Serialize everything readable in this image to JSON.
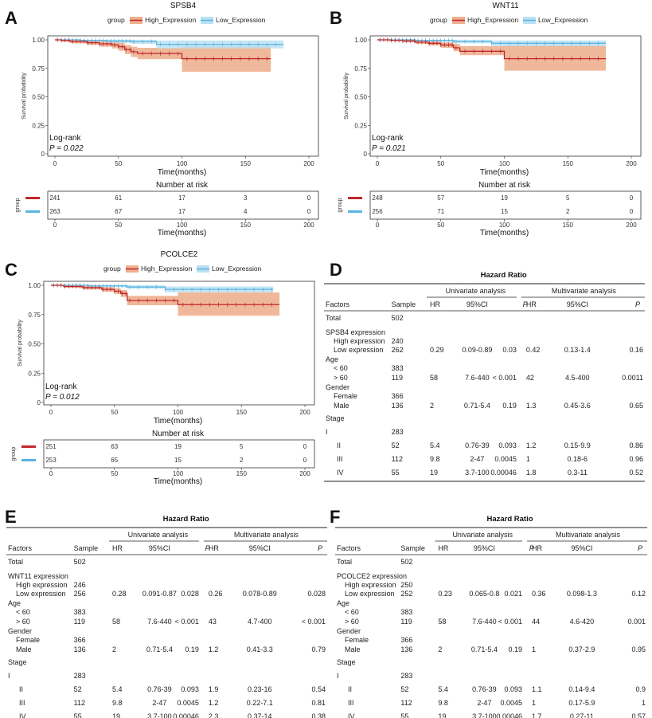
{
  "panel_labels": [
    "A",
    "B",
    "C",
    "D",
    "E",
    "F"
  ],
  "legend": {
    "title": "group",
    "high": "High_Expression",
    "low": "Low_Expression"
  },
  "colors": {
    "high": "#c0282d",
    "high_band": "#eeb08f",
    "low": "#5ab4e0",
    "low_band": "#b9e0f2"
  },
  "km_common": {
    "ylabel": "Survival probability",
    "xlabel": "Time(months)",
    "yticks": [
      "0",
      "0.25",
      "0.50",
      "0.75",
      "1.00"
    ],
    "xticks": [
      "0",
      "50",
      "100",
      "150",
      "200"
    ],
    "logrank_label": "Log-rank",
    "risk_title": "Number at risk",
    "risk_ylabel": "group"
  },
  "chart_data": [
    {
      "type": "line",
      "title": "SPSB4",
      "xlim": [
        0,
        200
      ],
      "ylim": [
        0,
        1
      ],
      "logrank_p": "P = 0.022",
      "series": [
        {
          "name": "High_Expression",
          "x": [
            0,
            5,
            12,
            25,
            35,
            45,
            50,
            55,
            60,
            65,
            100,
            170
          ],
          "y": [
            1.0,
            0.995,
            0.985,
            0.975,
            0.965,
            0.955,
            0.94,
            0.915,
            0.895,
            0.88,
            0.835,
            0.835
          ],
          "band_low": [
            1.0,
            0.985,
            0.97,
            0.955,
            0.94,
            0.925,
            0.905,
            0.875,
            0.85,
            0.83,
            0.72,
            0.72
          ],
          "band_high": [
            1.0,
            1.0,
            1.0,
            0.995,
            0.99,
            0.985,
            0.975,
            0.955,
            0.94,
            0.93,
            0.94,
            0.94
          ]
        },
        {
          "name": "Low_Expression",
          "x": [
            0,
            20,
            40,
            60,
            80,
            180
          ],
          "y": [
            1.0,
            0.995,
            0.99,
            0.985,
            0.96,
            0.96
          ],
          "band_low": [
            1.0,
            0.985,
            0.975,
            0.965,
            0.925,
            0.925
          ],
          "band_high": [
            1.0,
            1.0,
            1.0,
            1.0,
            0.995,
            0.995
          ]
        }
      ],
      "risk_table": {
        "times": [
          0,
          50,
          100,
          150,
          200
        ],
        "high": [
          "241",
          "61",
          "17",
          "3",
          "0"
        ],
        "low": [
          "263",
          "67",
          "17",
          "4",
          "0"
        ]
      }
    },
    {
      "type": "line",
      "title": "WNT11",
      "xlim": [
        0,
        200
      ],
      "ylim": [
        0,
        1
      ],
      "logrank_p": "P = 0.021",
      "series": [
        {
          "name": "High_Expression",
          "x": [
            0,
            10,
            20,
            30,
            40,
            50,
            60,
            65,
            100,
            180
          ],
          "y": [
            1.0,
            0.995,
            0.99,
            0.98,
            0.97,
            0.955,
            0.93,
            0.9,
            0.835,
            0.835
          ],
          "band_low": [
            1.0,
            0.99,
            0.98,
            0.965,
            0.95,
            0.93,
            0.9,
            0.865,
            0.73,
            0.73
          ],
          "band_high": [
            1.0,
            1.0,
            1.0,
            0.995,
            0.99,
            0.98,
            0.965,
            0.945,
            0.95,
            0.95
          ]
        },
        {
          "name": "Low_Expression",
          "x": [
            0,
            30,
            60,
            90,
            180
          ],
          "y": [
            1.0,
            0.995,
            0.985,
            0.97,
            0.97
          ],
          "band_low": [
            1.0,
            0.985,
            0.97,
            0.945,
            0.945
          ],
          "band_high": [
            1.0,
            1.0,
            1.0,
            0.995,
            0.995
          ]
        }
      ],
      "risk_table": {
        "times": [
          0,
          50,
          100,
          150,
          200
        ],
        "high": [
          "248",
          "57",
          "19",
          "5",
          "0"
        ],
        "low": [
          "256",
          "71",
          "15",
          "2",
          "0"
        ]
      }
    },
    {
      "type": "line",
      "title": "PCOLCE2",
      "xlim": [
        0,
        200
      ],
      "ylim": [
        0,
        1
      ],
      "logrank_p": "P = 0.012",
      "series": [
        {
          "name": "High_Expression",
          "x": [
            0,
            10,
            25,
            40,
            50,
            55,
            60,
            100,
            180
          ],
          "y": [
            1.0,
            0.99,
            0.98,
            0.965,
            0.95,
            0.93,
            0.87,
            0.835,
            0.835
          ],
          "band_low": [
            1.0,
            0.98,
            0.965,
            0.945,
            0.925,
            0.9,
            0.83,
            0.74,
            0.74
          ],
          "band_high": [
            1.0,
            1.0,
            0.995,
            0.985,
            0.975,
            0.96,
            0.91,
            0.94,
            0.94
          ]
        },
        {
          "name": "Low_Expression",
          "x": [
            0,
            30,
            60,
            90,
            175
          ],
          "y": [
            1.0,
            0.995,
            0.985,
            0.965,
            0.965
          ],
          "band_low": [
            1.0,
            0.985,
            0.97,
            0.94,
            0.94
          ],
          "band_high": [
            1.0,
            1.0,
            1.0,
            0.99,
            0.99
          ]
        }
      ],
      "risk_table": {
        "times": [
          0,
          50,
          100,
          150,
          200
        ],
        "high": [
          "251",
          "63",
          "19",
          "5",
          "0"
        ],
        "low": [
          "253",
          "65",
          "15",
          "2",
          "0"
        ]
      }
    }
  ],
  "hr_tables": {
    "title": "Hazard Ratio",
    "headers": {
      "factors": "Factors",
      "sample": "Sample",
      "uni": "Univariate analysis",
      "multi": "Multivariate analysis",
      "hr": "HR",
      "ci": "95%CI",
      "p": "P"
    },
    "D": [
      [
        "Total",
        "502",
        "",
        "",
        "",
        "",
        "",
        ""
      ],
      [
        "SPSB4 expression",
        "",
        "",
        "",
        "",
        "",
        "",
        ""
      ],
      [
        "High expression",
        "240",
        "",
        "",
        "",
        "",
        "",
        ""
      ],
      [
        "Low expression",
        "262",
        "0.29",
        "0.09-0.89",
        "0.03",
        "0.42",
        "0.13-1.4",
        "0.16"
      ],
      [
        "Age",
        "",
        "",
        "",
        "",
        "",
        "",
        ""
      ],
      [
        "< 60",
        "383",
        "",
        "",
        "",
        "",
        "",
        ""
      ],
      [
        "> 60",
        "119",
        "58",
        "7.6-440",
        "< 0.001",
        "42",
        "4.5-400",
        "0.0011"
      ],
      [
        "Gender",
        "",
        "",
        "",
        "",
        "",
        "",
        ""
      ],
      [
        "Female",
        "366",
        "",
        "",
        "",
        "",
        "",
        ""
      ],
      [
        "Male",
        "136",
        "2",
        "0.71-5.4",
        "0.19",
        "1.3",
        "0.45-3.6",
        "0.65"
      ],
      [
        "Stage",
        "",
        "",
        "",
        "",
        "",
        "",
        ""
      ],
      [
        "I",
        "283",
        "",
        "",
        "",
        "",
        "",
        ""
      ],
      [
        "II",
        "52",
        "5.4",
        "0.76-39",
        "0.093",
        "1.2",
        "0.15-9.9",
        "0.86"
      ],
      [
        "III",
        "112",
        "9.8",
        "2-47",
        "0.0045",
        "1",
        "0.18-6",
        "0.96"
      ],
      [
        "IV",
        "55",
        "19",
        "3.7-100",
        "0.00046",
        "1.8",
        "0.3-11",
        "0.52"
      ]
    ],
    "E": [
      [
        "Total",
        "502",
        "",
        "",
        "",
        "",
        "",
        ""
      ],
      [
        "WNT11 expression",
        "",
        "",
        "",
        "",
        "",
        "",
        ""
      ],
      [
        "High expression",
        "246",
        "",
        "",
        "",
        "",
        "",
        ""
      ],
      [
        "Low expression",
        "256",
        "0.28",
        "0.091-0.87",
        "0.028",
        "0.26",
        "0.078-0.89",
        "0.028"
      ],
      [
        "Age",
        "",
        "",
        "",
        "",
        "",
        "",
        ""
      ],
      [
        "< 60",
        "383",
        "",
        "",
        "",
        "",
        "",
        ""
      ],
      [
        "> 60",
        "119",
        "58",
        "7.6-440",
        "< 0.001",
        "43",
        "4.7-400",
        "< 0.001"
      ],
      [
        "Gender",
        "",
        "",
        "",
        "",
        "",
        "",
        ""
      ],
      [
        "Female",
        "366",
        "",
        "",
        "",
        "",
        "",
        ""
      ],
      [
        "Male",
        "136",
        "2",
        "0.71-5.4",
        "0.19",
        "1.2",
        "0.41-3.3",
        "0.79"
      ],
      [
        "Stage",
        "",
        "",
        "",
        "",
        "",
        "",
        ""
      ],
      [
        "I",
        "283",
        "",
        "",
        "",
        "",
        "",
        ""
      ],
      [
        "II",
        "52",
        "5.4",
        "0.76-39",
        "0.093",
        "1.9",
        "0.23-16",
        "0.54"
      ],
      [
        "III",
        "112",
        "9.8",
        "2-47",
        "0.0045",
        "1.2",
        "0.22-7.1",
        "0.81"
      ],
      [
        "IV",
        "55",
        "19",
        "3.7-100",
        "0.00046",
        "2.3",
        "0.37-14",
        "0.38"
      ]
    ],
    "F": [
      [
        "Total",
        "502",
        "",
        "",
        "",
        "",
        "",
        ""
      ],
      [
        "PCOLCE2 expression",
        "",
        "",
        "",
        "",
        "",
        "",
        ""
      ],
      [
        "High expression",
        "250",
        "",
        "",
        "",
        "",
        "",
        ""
      ],
      [
        "Low expression",
        "252",
        "0.23",
        "0.065-0.8",
        "0.021",
        "0.36",
        "0.098-1.3",
        "0.12"
      ],
      [
        "Age",
        "",
        "",
        "",
        "",
        "",
        "",
        ""
      ],
      [
        "< 60",
        "383",
        "",
        "",
        "",
        "",
        "",
        ""
      ],
      [
        "> 60",
        "119",
        "58",
        "7.6-440",
        "< 0.001",
        "44",
        "4.6-420",
        "0.001"
      ],
      [
        "Gender",
        "",
        "",
        "",
        "",
        "",
        "",
        ""
      ],
      [
        "Female",
        "366",
        "",
        "",
        "",
        "",
        "",
        ""
      ],
      [
        "Male",
        "136",
        "2",
        "0.71-5.4",
        "0.19",
        "1",
        "0.37-2.9",
        "0.95"
      ],
      [
        "Stage",
        "",
        "",
        "",
        "",
        "",
        "",
        ""
      ],
      [
        "I",
        "283",
        "",
        "",
        "",
        "",
        "",
        ""
      ],
      [
        "II",
        "52",
        "5.4",
        "0.76-39",
        "0.093",
        "1.1",
        "0.14-9.4",
        "0.9"
      ],
      [
        "III",
        "112",
        "9.8",
        "2-47",
        "0.0045",
        "1",
        "0.17-5.9",
        "1"
      ],
      [
        "IV",
        "55",
        "19",
        "3.7-100",
        "0.00046",
        "1.7",
        "0.27-11",
        "0.57"
      ]
    ]
  }
}
